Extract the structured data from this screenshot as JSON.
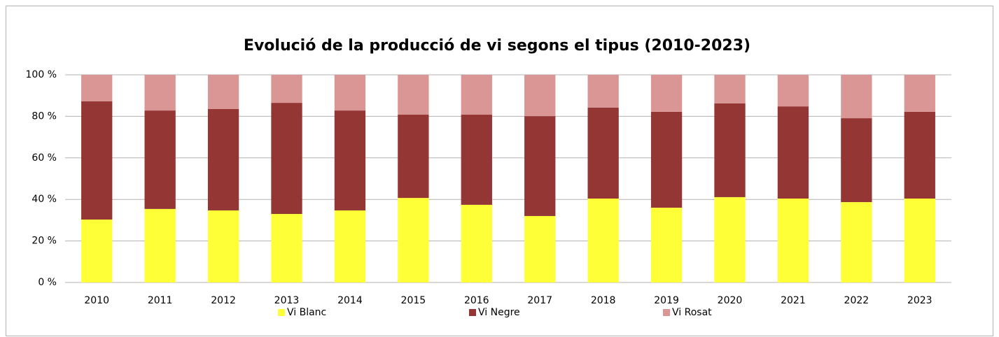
{
  "chart_data": {
    "type": "stacked_bar_percent",
    "title": "Evolució de la producció de vi segons el tipus (2010-2023)",
    "categories": [
      "2010",
      "2011",
      "2012",
      "2013",
      "2014",
      "2015",
      "2016",
      "2017",
      "2018",
      "2019",
      "2020",
      "2021",
      "2022",
      "2023"
    ],
    "series": [
      {
        "name": "Vi Blanc",
        "color": "#ffff38",
        "values": [
          30.3,
          35.4,
          34.7,
          33.0,
          34.7,
          40.7,
          37.4,
          32.0,
          40.4,
          36.0,
          41.1,
          40.4,
          38.7,
          40.4
        ]
      },
      {
        "name": "Vi Negre",
        "color": "#943634",
        "values": [
          56.9,
          47.4,
          48.8,
          53.5,
          48.1,
          40.1,
          43.4,
          48.1,
          43.8,
          46.2,
          45.1,
          44.4,
          40.4,
          41.8
        ]
      },
      {
        "name": "Vi Rosat",
        "color": "#d99694",
        "values": [
          12.8,
          17.2,
          16.5,
          13.5,
          17.2,
          19.2,
          19.2,
          19.9,
          15.8,
          17.8,
          13.8,
          15.2,
          20.9,
          17.8
        ]
      }
    ],
    "ylim": [
      0,
      100
    ],
    "yticks": [
      {
        "value": 0,
        "label": "0 %"
      },
      {
        "value": 20,
        "label": "20 %"
      },
      {
        "value": 40,
        "label": "40 %"
      },
      {
        "value": 60,
        "label": "60 %"
      },
      {
        "value": 80,
        "label": "80 %"
      },
      {
        "value": 100,
        "label": "100 %"
      }
    ],
    "grid": true,
    "legend": "bottom"
  }
}
